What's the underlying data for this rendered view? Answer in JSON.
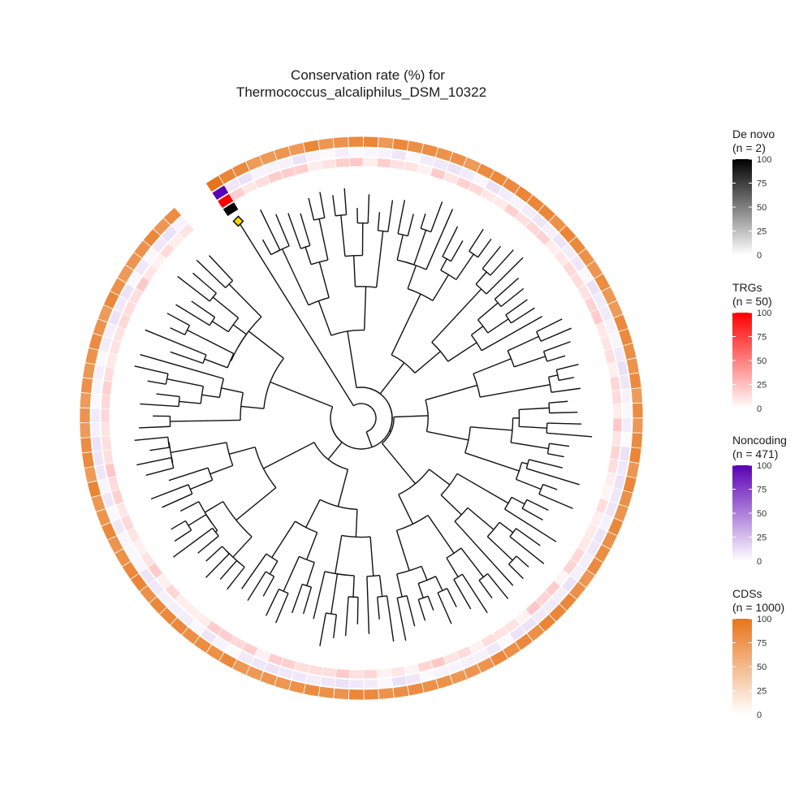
{
  "chart_data": {
    "type": "circular-phylogeny-heatmap",
    "title_line1": "Conservation rate (%) for",
    "title_line2": "Thermococcus_alcaliphilus_DSM_10322",
    "rings": [
      "De novo",
      "TRGs",
      "Noncoding",
      "CDSs"
    ],
    "legends": [
      {
        "title": "De novo",
        "n_label": "(n = 2)",
        "color_low": "#ffffff",
        "color_high": "#000000",
        "ticks": [
          "100",
          "75",
          "50",
          "25",
          "0"
        ]
      },
      {
        "title": "TRGs",
        "n_label": "(n = 50)",
        "color_low": "#ffffff",
        "color_high": "#ff0000",
        "ticks": [
          "100",
          "75",
          "50",
          "25",
          "0"
        ]
      },
      {
        "title": "Noncoding",
        "n_label": "(n = 471)",
        "color_low": "#ffffff",
        "color_high": "#5a00b4",
        "ticks": [
          "100",
          "75",
          "50",
          "25",
          "0"
        ]
      },
      {
        "title": "CDSs",
        "n_label": "(n = 1000)",
        "color_low": "#ffffff",
        "color_high": "#e8741a",
        "ticks": [
          "100",
          "75",
          "50",
          "25",
          "0"
        ]
      }
    ],
    "leaf_count": 114,
    "focal_leaf": {
      "index": 0,
      "de_novo": 100,
      "trgs": 100,
      "noncoding": 100,
      "cds": 100
    },
    "typical_values": {
      "de_novo": 0,
      "trgs": 12,
      "noncoding": 6,
      "cds": 80
    }
  }
}
